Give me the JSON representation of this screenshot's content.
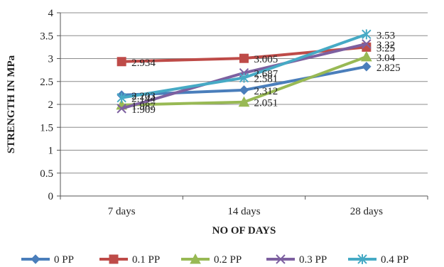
{
  "chart_data": {
    "type": "line",
    "title": "",
    "xlabel": "NO  OF DAYS",
    "ylabel": "STRENGTH IN MPa",
    "categories": [
      "7 days",
      "14 days",
      "28 days"
    ],
    "ylim": [
      0,
      4
    ],
    "yticks": [
      "0",
      "0.5",
      "1",
      "1.5",
      "2",
      "2.5",
      "3",
      "3.5",
      "4"
    ],
    "grid": true,
    "legend_position": "bottom",
    "series": [
      {
        "name": "0 PP",
        "color": "#4a7ebb",
        "marker": "diamond",
        "values": [
          2.203,
          2.312,
          2.825
        ],
        "labels": [
          "2.203",
          "2.312",
          "2.825"
        ]
      },
      {
        "name": "0.1 PP",
        "color": "#be4b48",
        "marker": "square",
        "values": [
          2.934,
          3.005,
          3.25
        ],
        "labels": [
          "2.934",
          "3.005",
          "3.25"
        ]
      },
      {
        "name": "0.2 PP",
        "color": "#98b954",
        "marker": "triangle",
        "values": [
          1.987,
          2.051,
          3.04
        ],
        "labels": [
          "1.987",
          "2.051",
          "3.04"
        ]
      },
      {
        "name": "0.3 PP",
        "color": "#7d60a0",
        "marker": "x",
        "values": [
          1.909,
          2.687,
          3.32
        ],
        "labels": [
          "1.909",
          "2.687",
          "3.32"
        ]
      },
      {
        "name": "0.4 PP",
        "color": "#46aac5",
        "marker": "star",
        "values": [
          2.144,
          2.581,
          3.53
        ],
        "labels": [
          "2.144",
          "2.581",
          "3.53"
        ]
      }
    ]
  }
}
